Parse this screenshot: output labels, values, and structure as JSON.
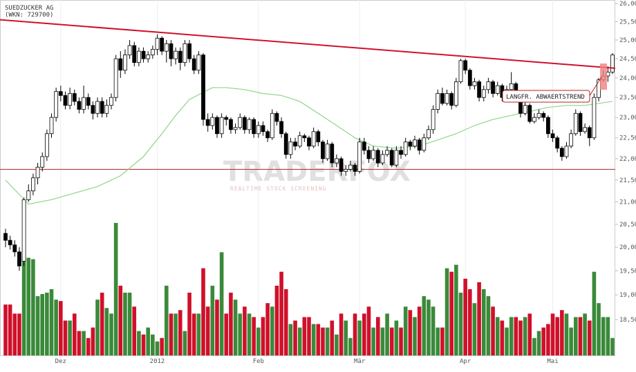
{
  "chart_data": {
    "type": "candlestick",
    "title": "SUEDZUCKER AG",
    "subtitle": "(WKN: 729700)",
    "annotation": "LANGFR. ABWAERTSTREND",
    "watermark": "TRADERFOX",
    "watermark_sub": "REALTIME STOCK SCREENING",
    "log_scale": true,
    "ylim": [
      17.8,
      26.1
    ],
    "yticks": [
      {
        "value": 18.5,
        "label": "18,50"
      },
      {
        "value": 19,
        "label": "19,00"
      },
      {
        "value": 19.5,
        "label": "19,50"
      },
      {
        "value": 20,
        "label": "20,00"
      },
      {
        "value": 20.5,
        "label": "20,50"
      },
      {
        "value": 21,
        "label": "21,00"
      },
      {
        "value": 21.5,
        "label": "21,50"
      },
      {
        "value": 22,
        "label": "22,00"
      },
      {
        "value": 22.5,
        "label": "22,50"
      },
      {
        "value": 23,
        "label": "23,00"
      },
      {
        "value": 23.5,
        "label": "23,50"
      },
      {
        "value": 24,
        "label": "24,00"
      },
      {
        "value": 24.5,
        "label": "24,50"
      },
      {
        "value": 25,
        "label": "25,00"
      },
      {
        "value": 25.5,
        "label": "25,50"
      },
      {
        "value": 26,
        "label": "26,00"
      }
    ],
    "categories": [
      null,
      null,
      null,
      null,
      null,
      null,
      null,
      null,
      null,
      null,
      null,
      null,
      "Dez",
      null,
      null,
      null,
      null,
      null,
      null,
      null,
      null,
      null,
      null,
      null,
      null,
      null,
      null,
      null,
      null,
      null,
      null,
      null,
      null,
      "2012",
      null,
      null,
      null,
      null,
      null,
      null,
      null,
      null,
      null,
      null,
      null,
      null,
      null,
      null,
      null,
      null,
      null,
      null,
      null,
      null,
      null,
      "Feb",
      null,
      null,
      null,
      null,
      null,
      null,
      null,
      null,
      null,
      null,
      null,
      null,
      null,
      null,
      null,
      null,
      null,
      null,
      null,
      null,
      null,
      "Mär",
      null,
      null,
      null,
      null,
      null,
      null,
      null,
      null,
      null,
      null,
      null,
      null,
      null,
      null,
      null,
      null,
      null,
      null,
      null,
      null,
      null,
      null,
      "Apr",
      null,
      null,
      null,
      null,
      null,
      null,
      null,
      null,
      null,
      null,
      null,
      null,
      null,
      null,
      null,
      null,
      null,
      null,
      "Mai",
      null,
      null,
      null,
      null,
      null,
      null,
      null,
      null,
      null,
      null,
      null,
      null,
      null
    ],
    "ohlc": [
      [
        20.3,
        20.4,
        20.0,
        20.15
      ],
      [
        20.15,
        20.25,
        19.95,
        20.05
      ],
      [
        20.05,
        20.15,
        19.8,
        19.9
      ],
      [
        19.9,
        20.0,
        19.5,
        19.6
      ],
      [
        19.7,
        21.1,
        19.6,
        21.05
      ],
      [
        21.05,
        21.4,
        21.0,
        21.25
      ],
      [
        21.25,
        21.65,
        21.15,
        21.55
      ],
      [
        21.55,
        21.9,
        21.4,
        21.8
      ],
      [
        21.8,
        22.15,
        21.7,
        22.05
      ],
      [
        22.05,
        22.7,
        21.95,
        22.6
      ],
      [
        22.6,
        23.1,
        22.5,
        23.0
      ],
      [
        23.0,
        23.75,
        22.9,
        23.65
      ],
      [
        23.65,
        23.8,
        23.4,
        23.55
      ],
      [
        23.55,
        23.65,
        23.2,
        23.3
      ],
      [
        23.3,
        23.75,
        23.2,
        23.6
      ],
      [
        23.6,
        23.7,
        23.3,
        23.4
      ],
      [
        23.4,
        23.5,
        23.1,
        23.2
      ],
      [
        23.2,
        23.8,
        23.1,
        23.5
      ],
      [
        23.5,
        23.6,
        23.2,
        23.3
      ],
      [
        23.3,
        23.4,
        22.95,
        23.1
      ],
      [
        23.1,
        23.5,
        23.0,
        23.4
      ],
      [
        23.4,
        23.5,
        23.0,
        23.1
      ],
      [
        23.1,
        23.45,
        23.0,
        23.3
      ],
      [
        23.3,
        23.6,
        23.2,
        23.5
      ],
      [
        23.5,
        24.6,
        23.4,
        24.5
      ],
      [
        24.5,
        24.7,
        24.0,
        24.2
      ],
      [
        24.2,
        24.75,
        24.1,
        24.6
      ],
      [
        24.6,
        25.0,
        24.5,
        24.85
      ],
      [
        24.85,
        24.95,
        24.3,
        24.4
      ],
      [
        24.4,
        24.8,
        24.3,
        24.7
      ],
      [
        24.7,
        24.8,
        24.4,
        24.5
      ],
      [
        24.5,
        24.7,
        24.4,
        24.6
      ],
      [
        24.6,
        24.85,
        24.5,
        24.75
      ],
      [
        24.75,
        25.15,
        24.6,
        25.05
      ],
      [
        25.05,
        25.1,
        24.6,
        24.7
      ],
      [
        24.7,
        25.0,
        24.4,
        24.9
      ],
      [
        24.9,
        25.0,
        24.3,
        24.5
      ],
      [
        24.5,
        24.8,
        24.35,
        24.7
      ],
      [
        24.7,
        24.8,
        24.2,
        24.4
      ],
      [
        24.4,
        25.0,
        24.3,
        24.9
      ],
      [
        24.9,
        25.0,
        24.4,
        24.5
      ],
      [
        24.5,
        24.6,
        24.1,
        24.2
      ],
      [
        24.2,
        24.7,
        24.1,
        24.6
      ],
      [
        24.6,
        24.65,
        22.8,
        22.95
      ],
      [
        22.95,
        23.1,
        22.65,
        22.8
      ],
      [
        22.8,
        23.1,
        22.7,
        23.0
      ],
      [
        23.0,
        23.05,
        22.5,
        22.6
      ],
      [
        22.6,
        23.1,
        22.5,
        23.0
      ],
      [
        23.0,
        23.05,
        22.8,
        22.95
      ],
      [
        22.95,
        23.0,
        22.6,
        22.7
      ],
      [
        22.7,
        22.85,
        22.6,
        22.75
      ],
      [
        22.75,
        23.1,
        22.7,
        23.0
      ],
      [
        23.0,
        23.05,
        22.6,
        22.7
      ],
      [
        22.7,
        23.0,
        22.6,
        22.95
      ],
      [
        22.95,
        23.0,
        22.5,
        22.6
      ],
      [
        22.6,
        22.9,
        22.5,
        22.8
      ],
      [
        22.8,
        22.9,
        22.55,
        22.65
      ],
      [
        22.65,
        22.7,
        22.4,
        22.5
      ],
      [
        22.5,
        23.2,
        22.45,
        23.1
      ],
      [
        23.1,
        23.15,
        22.8,
        22.9
      ],
      [
        22.9,
        23.0,
        22.5,
        22.6
      ],
      [
        22.6,
        22.65,
        22.0,
        22.1
      ],
      [
        22.1,
        22.5,
        22.0,
        22.4
      ],
      [
        22.4,
        22.5,
        22.2,
        22.3
      ],
      [
        22.3,
        22.65,
        22.25,
        22.55
      ],
      [
        22.55,
        22.6,
        22.4,
        22.5
      ],
      [
        22.5,
        22.55,
        22.2,
        22.3
      ],
      [
        22.3,
        22.75,
        22.25,
        22.65
      ],
      [
        22.65,
        22.7,
        22.3,
        22.4
      ],
      [
        22.4,
        22.45,
        21.9,
        22.0
      ],
      [
        22.0,
        22.45,
        21.95,
        22.35
      ],
      [
        22.35,
        22.4,
        21.8,
        21.9
      ],
      [
        21.9,
        22.1,
        21.8,
        22.0
      ],
      [
        22.0,
        22.05,
        21.6,
        21.7
      ],
      [
        21.7,
        21.85,
        21.6,
        21.75
      ],
      [
        21.75,
        21.95,
        21.7,
        21.85
      ],
      [
        21.85,
        21.9,
        21.6,
        21.7
      ],
      [
        21.7,
        22.5,
        21.65,
        22.4
      ],
      [
        22.4,
        22.5,
        22.1,
        22.2
      ],
      [
        22.2,
        22.3,
        21.9,
        22.0
      ],
      [
        22.0,
        22.3,
        21.95,
        22.2
      ],
      [
        22.2,
        22.25,
        21.8,
        21.9
      ],
      [
        21.9,
        22.2,
        21.85,
        22.1
      ],
      [
        22.1,
        22.3,
        22.05,
        22.2
      ],
      [
        22.2,
        22.25,
        21.8,
        21.85
      ],
      [
        21.85,
        22.3,
        21.8,
        22.2
      ],
      [
        22.2,
        22.3,
        22.0,
        22.1
      ],
      [
        22.1,
        22.5,
        22.05,
        22.4
      ],
      [
        22.4,
        22.45,
        22.2,
        22.3
      ],
      [
        22.3,
        22.55,
        22.25,
        22.45
      ],
      [
        22.45,
        22.5,
        22.1,
        22.2
      ],
      [
        22.2,
        22.6,
        22.15,
        22.5
      ],
      [
        22.5,
        22.8,
        22.45,
        22.7
      ],
      [
        22.7,
        23.3,
        22.6,
        23.2
      ],
      [
        23.2,
        23.7,
        23.1,
        23.6
      ],
      [
        23.6,
        23.75,
        23.3,
        23.35
      ],
      [
        23.35,
        23.7,
        23.3,
        23.6
      ],
      [
        23.6,
        23.65,
        23.2,
        23.3
      ],
      [
        23.3,
        24.0,
        23.25,
        23.9
      ],
      [
        23.9,
        24.5,
        23.85,
        24.45
      ],
      [
        24.45,
        24.5,
        24.1,
        24.2
      ],
      [
        24.2,
        24.25,
        23.7,
        23.8
      ],
      [
        23.8,
        24.0,
        23.7,
        23.9
      ],
      [
        23.9,
        23.95,
        23.4,
        23.5
      ],
      [
        23.5,
        23.8,
        23.4,
        23.7
      ],
      [
        23.7,
        24.0,
        23.6,
        23.9
      ],
      [
        23.9,
        23.95,
        23.5,
        23.6
      ],
      [
        23.6,
        23.9,
        23.55,
        23.8
      ],
      [
        23.8,
        23.85,
        23.4,
        23.5
      ],
      [
        23.5,
        23.8,
        23.45,
        23.7
      ],
      [
        23.7,
        24.15,
        23.65,
        23.85
      ],
      [
        23.85,
        23.9,
        23.5,
        23.6
      ],
      [
        23.6,
        23.65,
        23.0,
        23.1
      ],
      [
        23.1,
        23.4,
        23.05,
        23.3
      ],
      [
        23.3,
        23.35,
        22.85,
        22.9
      ],
      [
        22.9,
        23.1,
        22.85,
        23.0
      ],
      [
        23.0,
        23.2,
        22.95,
        23.1
      ],
      [
        23.1,
        23.15,
        22.9,
        23.0
      ],
      [
        23.0,
        23.05,
        22.5,
        22.6
      ],
      [
        22.6,
        22.7,
        22.4,
        22.5
      ],
      [
        22.5,
        22.55,
        22.15,
        22.25
      ],
      [
        22.25,
        22.3,
        21.95,
        22.05
      ],
      [
        22.05,
        22.4,
        22.0,
        22.3
      ],
      [
        22.3,
        22.7,
        22.25,
        22.6
      ],
      [
        22.6,
        23.2,
        22.55,
        23.1
      ],
      [
        23.1,
        23.15,
        22.55,
        22.65
      ],
      [
        22.65,
        22.85,
        22.6,
        22.75
      ],
      [
        22.75,
        22.8,
        22.3,
        22.5
      ],
      [
        22.5,
        23.6,
        22.45,
        23.5
      ],
      [
        23.5,
        24.0,
        23.4,
        23.95
      ],
      [
        23.95,
        24.2,
        23.9,
        24.05
      ],
      [
        24.05,
        24.3,
        23.9,
        24.15
      ],
      [
        24.15,
        24.65,
        24.1,
        24.6
      ]
    ],
    "volume": [
      73,
      73,
      60,
      60,
      140,
      140,
      138,
      85,
      88,
      90,
      95,
      80,
      78,
      50,
      50,
      60,
      35,
      35,
      25,
      40,
      80,
      90,
      68,
      60,
      190,
      100,
      90,
      90,
      70,
      35,
      30,
      40,
      30,
      20,
      25,
      100,
      60,
      60,
      65,
      35,
      90,
      60,
      60,
      125,
      70,
      100,
      80,
      148,
      60,
      90,
      80,
      60,
      70,
      60,
      55,
      40,
      55,
      75,
      70,
      100,
      120,
      95,
      45,
      50,
      40,
      55,
      55,
      45,
      45,
      40,
      40,
      50,
      30,
      60,
      50,
      25,
      60,
      50,
      60,
      70,
      40,
      55,
      40,
      60,
      40,
      50,
      40,
      70,
      65,
      55,
      70,
      85,
      80,
      70,
      40,
      40,
      125,
      120,
      130,
      90,
      110,
      95,
      75,
      105,
      95,
      85,
      70,
      55,
      50,
      40,
      55,
      55,
      50,
      55,
      60,
      25,
      35,
      40,
      45,
      60,
      55,
      65,
      60,
      40,
      55,
      55,
      60,
      50,
      120,
      75,
      55,
      55,
      25
    ],
    "up_color": "#3a8a3a",
    "down_color": "#d0102a",
    "moving_average": {
      "color": "#8fd48a",
      "x": [
        0,
        5,
        10,
        20,
        25,
        30,
        34,
        37,
        40,
        45,
        48,
        52,
        56,
        60,
        64,
        68,
        72,
        76,
        80,
        85,
        90,
        94,
        98,
        102,
        106,
        110,
        114,
        118,
        122,
        126,
        129,
        132
      ],
      "values": [
        21.5,
        20.95,
        21.05,
        21.35,
        21.6,
        22.05,
        22.6,
        23.05,
        23.45,
        23.75,
        23.75,
        23.7,
        23.6,
        23.55,
        23.4,
        23.1,
        22.8,
        22.5,
        22.3,
        22.25,
        22.3,
        22.45,
        22.6,
        22.8,
        22.95,
        23.05,
        23.15,
        23.25,
        23.3,
        23.3,
        23.35,
        23.4
      ]
    },
    "trendline": {
      "color": "#d0102a",
      "values": [
        25.55,
        24.25
      ]
    },
    "support": {
      "color": "#b02020",
      "value": 21.75
    }
  }
}
